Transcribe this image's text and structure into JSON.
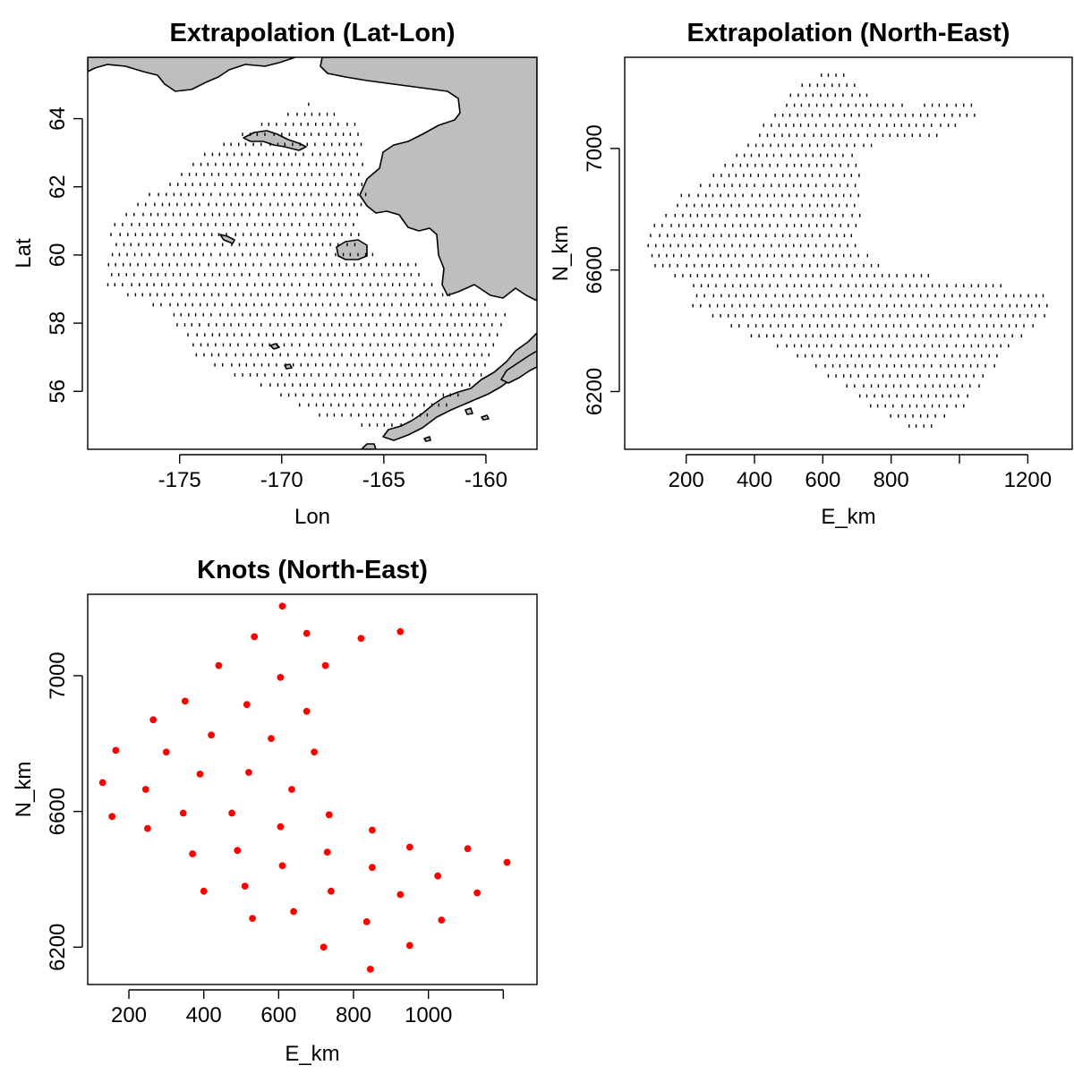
{
  "chart_data": [
    {
      "type": "scatter",
      "title": "Extrapolation (Lat-Lon)",
      "xlabel": "Lon",
      "ylabel": "Lat",
      "xlim": [
        -179.5,
        -157.5
      ],
      "ylim": [
        54.3,
        65.8
      ],
      "xticks": [
        -175,
        -170,
        -165,
        -160
      ],
      "xtick_labels": [
        "-175",
        "-170",
        "-165",
        "-160"
      ],
      "yticks": [
        56,
        58,
        60,
        62,
        64
      ],
      "ytick_labels": [
        "56",
        "58",
        "60",
        "62",
        "64"
      ],
      "series": [
        {
          "marker": "dense grid points",
          "color": "#000000",
          "region": [
            [
              -178.5,
              60.9
            ],
            [
              -173.5,
              63.1
            ],
            [
              -168.8,
              64.5
            ],
            [
              -166.2,
              63.8
            ],
            [
              -165.8,
              62.0
            ],
            [
              -166.3,
              60.1
            ],
            [
              -163.4,
              59.8
            ],
            [
              -162.2,
              58.9
            ],
            [
              -158.7,
              58.4
            ],
            [
              -160.0,
              56.6
            ],
            [
              -162.2,
              55.4
            ],
            [
              -164.5,
              54.9
            ],
            [
              -167.7,
              55.1
            ],
            [
              -170.9,
              56.1
            ],
            [
              -174.3,
              57.0
            ],
            [
              -175.6,
              58.3
            ],
            [
              -178.6,
              59.1
            ]
          ]
        }
      ],
      "land_color": "#bebebe"
    },
    {
      "type": "scatter",
      "title": "Extrapolation (North-East)",
      "xlabel": "E_km",
      "ylabel": "N_km",
      "xlim": [
        20,
        1330
      ],
      "ylim": [
        6010,
        7300
      ],
      "xticks": [
        200,
        400,
        600,
        800,
        1000,
        1200
      ],
      "xtick_labels": [
        "200",
        "400",
        "600",
        "800",
        "",
        "1200"
      ],
      "yticks": [
        6200,
        6600,
        7000
      ],
      "ytick_labels": [
        "6200",
        "6600",
        "7000"
      ],
      "series": [
        {
          "marker": "dense grid points",
          "color": "#000000",
          "region": [
            [
              70,
              6680
            ],
            [
              100,
              6760
            ],
            [
              200,
              6860
            ],
            [
              300,
              6940
            ],
            [
              400,
              7040
            ],
            [
              490,
              7170
            ],
            [
              590,
              7250
            ],
            [
              680,
              7240
            ],
            [
              760,
              7150
            ],
            [
              880,
              7140
            ],
            [
              990,
              7160
            ],
            [
              1050,
              7170
            ],
            [
              1060,
              7100
            ],
            [
              1000,
              7080
            ],
            [
              940,
              7040
            ],
            [
              760,
              7020
            ],
            [
              700,
              6980
            ],
            [
              720,
              6800
            ],
            [
              690,
              6700
            ],
            [
              770,
              6610
            ],
            [
              900,
              6590
            ],
            [
              1010,
              6560
            ],
            [
              1130,
              6550
            ],
            [
              1250,
              6530
            ],
            [
              1280,
              6460
            ],
            [
              1180,
              6380
            ],
            [
              1100,
              6280
            ],
            [
              1030,
              6160
            ],
            [
              890,
              6060
            ],
            [
              780,
              6120
            ],
            [
              700,
              6180
            ],
            [
              580,
              6280
            ],
            [
              410,
              6370
            ],
            [
              280,
              6440
            ],
            [
              220,
              6480
            ],
            [
              200,
              6560
            ],
            [
              100,
              6600
            ]
          ]
        }
      ]
    },
    {
      "type": "scatter",
      "title": "Knots (North-East)",
      "xlabel": "E_km",
      "ylabel": "N_km",
      "xlim": [
        90,
        1290
      ],
      "ylim": [
        6090,
        7240
      ],
      "xticks": [
        200,
        400,
        600,
        800,
        1000,
        1200
      ],
      "xtick_labels": [
        "200",
        "400",
        "600",
        "800",
        "1000",
        ""
      ],
      "yticks": [
        6200,
        6600,
        7000
      ],
      "ytick_labels": [
        "6200",
        "6600",
        "7000"
      ],
      "series": [
        {
          "name": "",
          "color": "#ff0000",
          "points": [
            [
              610,
              7205
            ],
            [
              675,
              7125
            ],
            [
              535,
              7115
            ],
            [
              820,
              7110
            ],
            [
              925,
              7130
            ],
            [
              440,
              7030
            ],
            [
              725,
              7030
            ],
            [
              605,
              6995
            ],
            [
              350,
              6925
            ],
            [
              515,
              6915
            ],
            [
              675,
              6895
            ],
            [
              265,
              6870
            ],
            [
              420,
              6825
            ],
            [
              580,
              6815
            ],
            [
              165,
              6780
            ],
            [
              300,
              6775
            ],
            [
              695,
              6775
            ],
            [
              390,
              6710
            ],
            [
              520,
              6715
            ],
            [
              130,
              6685
            ],
            [
              245,
              6665
            ],
            [
              635,
              6665
            ],
            [
              155,
              6585
            ],
            [
              345,
              6595
            ],
            [
              475,
              6595
            ],
            [
              735,
              6590
            ],
            [
              605,
              6555
            ],
            [
              250,
              6550
            ],
            [
              850,
              6545
            ],
            [
              950,
              6495
            ],
            [
              1105,
              6490
            ],
            [
              370,
              6475
            ],
            [
              490,
              6485
            ],
            [
              730,
              6480
            ],
            [
              1210,
              6450
            ],
            [
              610,
              6440
            ],
            [
              850,
              6435
            ],
            [
              1025,
              6410
            ],
            [
              510,
              6380
            ],
            [
              400,
              6365
            ],
            [
              740,
              6365
            ],
            [
              925,
              6355
            ],
            [
              1130,
              6360
            ],
            [
              530,
              6285
            ],
            [
              640,
              6305
            ],
            [
              835,
              6275
            ],
            [
              1035,
              6280
            ],
            [
              720,
              6200
            ],
            [
              950,
              6205
            ],
            [
              845,
              6135
            ]
          ]
        }
      ]
    }
  ]
}
